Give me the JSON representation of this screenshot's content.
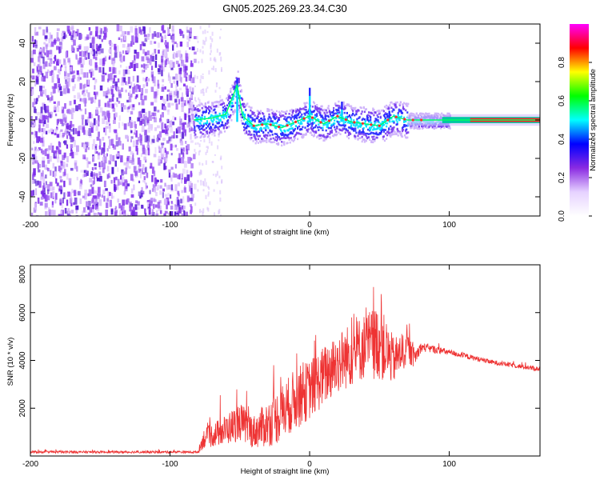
{
  "title": "GN05.2025.269.23.34.C30",
  "chart_data": [
    {
      "type": "heatmap",
      "id": "spectrogram",
      "xlabel": "Height of straight line (km)",
      "ylabel": "Frequency (Hz)",
      "xlim": [
        -200,
        165
      ],
      "ylim": [
        -50,
        50
      ],
      "xticks": [
        -200,
        -100,
        0,
        100
      ],
      "yticks": [
        -40,
        -20,
        0,
        20,
        40
      ],
      "colorbar": {
        "label": "Normalized spectral amplitude",
        "range": [
          0,
          1
        ],
        "ticks": [
          0.0,
          0.2,
          0.4,
          0.6,
          0.8
        ],
        "tick_labels": [
          "0.0",
          "0.2",
          "0.4",
          "0.6",
          "0.8"
        ],
        "colormap": [
          "#ffffff",
          "#e6d2ff",
          "#8a2be2",
          "#0000ff",
          "#00ffff",
          "#00ff00",
          "#ffff00",
          "#ff0000",
          "#ff00ff"
        ]
      },
      "noise_region_km": [
        -200,
        -83
      ],
      "signal_onset_km": -83,
      "ridge_points": [
        {
          "x": -83,
          "y": 0
        },
        {
          "x": -70,
          "y": 1
        },
        {
          "x": -60,
          "y": 3
        },
        {
          "x": -52,
          "y": 18
        },
        {
          "x": -48,
          "y": 2
        },
        {
          "x": -40,
          "y": -3
        },
        {
          "x": -30,
          "y": -2
        },
        {
          "x": -20,
          "y": -4
        },
        {
          "x": -10,
          "y": -1
        },
        {
          "x": 0,
          "y": 2
        },
        {
          "x": 10,
          "y": -2
        },
        {
          "x": 20,
          "y": 2
        },
        {
          "x": 30,
          "y": -1
        },
        {
          "x": 40,
          "y": -2
        },
        {
          "x": 50,
          "y": -3
        },
        {
          "x": 60,
          "y": 2
        },
        {
          "x": 70,
          "y": 0
        },
        {
          "x": 90,
          "y": 0
        },
        {
          "x": 165,
          "y": 0
        }
      ],
      "spikes": [
        {
          "x": -52,
          "y_max": 22
        },
        {
          "x": 0,
          "y_max": 17
        },
        {
          "x": 23,
          "y_max": 10
        },
        {
          "x": 57,
          "y_max": 5
        }
      ]
    },
    {
      "type": "line",
      "id": "snr",
      "xlabel": "Height of straight line (km)",
      "ylabel": "SNR (10 * v/v)",
      "xlim": [
        -200,
        165
      ],
      "ylim": [
        0,
        8000
      ],
      "xticks": [
        -200,
        -100,
        0,
        100
      ],
      "yticks": [
        2000,
        4000,
        6000,
        8000
      ],
      "color": "#ee3333",
      "envelope": [
        {
          "x": -200,
          "base": 150,
          "spread": 100
        },
        {
          "x": -80,
          "base": 150,
          "spread": 100
        },
        {
          "x": -76,
          "base": 600,
          "spread": 800
        },
        {
          "x": -60,
          "base": 900,
          "spread": 1300
        },
        {
          "x": -50,
          "base": 1200,
          "spread": 1600
        },
        {
          "x": -40,
          "base": 800,
          "spread": 1400
        },
        {
          "x": -25,
          "base": 1200,
          "spread": 2200
        },
        {
          "x": -10,
          "base": 2000,
          "spread": 2600
        },
        {
          "x": 0,
          "base": 2400,
          "spread": 2500
        },
        {
          "x": 20,
          "base": 3500,
          "spread": 2600
        },
        {
          "x": 40,
          "base": 4200,
          "spread": 2800
        },
        {
          "x": 50,
          "base": 4300,
          "spread": 3200
        },
        {
          "x": 60,
          "base": 3700,
          "spread": 2000
        },
        {
          "x": 70,
          "base": 4300,
          "spread": 1400
        },
        {
          "x": 75,
          "base": 4000,
          "spread": 800
        },
        {
          "x": 80,
          "base": 4500,
          "spread": 400
        },
        {
          "x": 100,
          "base": 4300,
          "spread": 250
        },
        {
          "x": 130,
          "base": 3900,
          "spread": 200
        },
        {
          "x": 165,
          "base": 3600,
          "spread": 200
        }
      ]
    }
  ]
}
